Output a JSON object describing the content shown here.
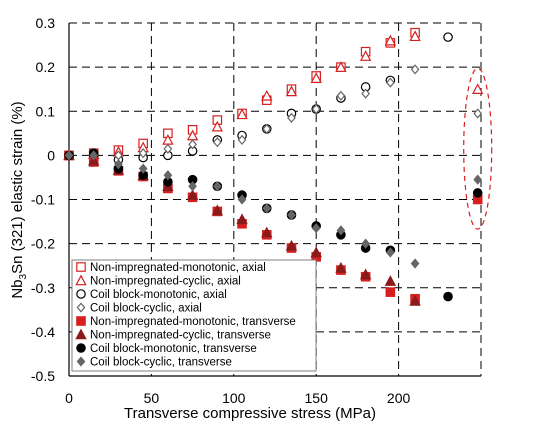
{
  "chart_data": {
    "type": "scatter",
    "xlabel": "Transverse compressive stress (MPa)",
    "ylabel_parts": [
      "Nb",
      "3",
      "Sn (321) elastic strain (%)"
    ],
    "xlim": [
      0,
      250
    ],
    "ylim": [
      -0.5,
      0.3
    ],
    "xticks": [
      "0",
      "50",
      "100",
      "150",
      "200"
    ],
    "xtick_values": [
      0,
      50,
      100,
      150,
      200
    ],
    "yticks": [
      "0.3",
      "0.2",
      "0.1",
      "0",
      "-0.1",
      "-0.2",
      "-0.3",
      "-0.4",
      "-0.5"
    ],
    "ytick_values": [
      0.3,
      0.2,
      0.1,
      0,
      -0.1,
      -0.2,
      -0.3,
      -0.4,
      -0.5
    ],
    "grid": "dashed",
    "legend_position": "lower-left",
    "colors": {
      "red": "#d62020",
      "black": "#000000",
      "gray": "#666666"
    },
    "series": [
      {
        "name": "Non-impregnated-monotonic, axial",
        "marker": "square-open",
        "color": "#d62020",
        "x": [
          0,
          15,
          30,
          45,
          60,
          75,
          90,
          105,
          120,
          135,
          150,
          165,
          180,
          195,
          210
        ],
        "y": [
          0.0,
          0.005,
          0.012,
          0.027,
          0.05,
          0.058,
          0.08,
          0.095,
          0.125,
          0.15,
          0.18,
          0.2,
          0.235,
          0.255,
          0.278
        ]
      },
      {
        "name": "Non-impregnated-cyclic, axial",
        "marker": "triangle-open",
        "color": "#d62020",
        "x": [
          0,
          15,
          30,
          45,
          60,
          75,
          90,
          105,
          120,
          135,
          150,
          165,
          180,
          195,
          210,
          248
        ],
        "y": [
          0.0,
          0.003,
          0.008,
          0.018,
          0.035,
          0.045,
          0.065,
          0.093,
          0.135,
          0.145,
          0.175,
          0.2,
          0.225,
          0.26,
          0.27,
          0.15
        ]
      },
      {
        "name": "Coil block-monotonic, axial",
        "marker": "circle-open",
        "color": "#000000",
        "x": [
          0,
          15,
          30,
          45,
          60,
          75,
          90,
          105,
          120,
          135,
          150,
          165,
          180,
          195,
          230
        ],
        "y": [
          0.0,
          0.0,
          -0.01,
          -0.005,
          0.0,
          0.01,
          0.035,
          0.045,
          0.06,
          0.095,
          0.105,
          0.13,
          0.155,
          0.17,
          0.268
        ]
      },
      {
        "name": "Coil block-cyclic, axial",
        "marker": "diamond-open",
        "color": "#666666",
        "x": [
          0,
          15,
          30,
          45,
          60,
          75,
          90,
          105,
          120,
          135,
          150,
          165,
          180,
          195,
          210,
          248
        ],
        "y": [
          0.0,
          0.0,
          0.0,
          0.005,
          0.015,
          0.025,
          0.03,
          0.035,
          0.06,
          0.085,
          0.105,
          0.135,
          0.14,
          0.165,
          0.195,
          0.095
        ]
      },
      {
        "name": "Non-impregnated-monotonic, transverse",
        "marker": "square-filled",
        "color": "#d62020",
        "x": [
          0,
          15,
          30,
          45,
          60,
          75,
          90,
          105,
          120,
          135,
          150,
          165,
          180,
          195,
          210,
          248
        ],
        "y": [
          0.0,
          -0.015,
          -0.035,
          -0.048,
          -0.075,
          -0.095,
          -0.127,
          -0.155,
          -0.18,
          -0.21,
          -0.23,
          -0.26,
          -0.275,
          -0.31,
          -0.325,
          -0.1
        ]
      },
      {
        "name": "Non-impregnated-cyclic, transverse",
        "marker": "triangle-filled",
        "color": "#8b1a1a",
        "x": [
          0,
          15,
          30,
          45,
          60,
          75,
          90,
          105,
          120,
          135,
          150,
          165,
          180,
          195,
          210
        ],
        "y": [
          0.0,
          -0.012,
          -0.033,
          -0.045,
          -0.07,
          -0.09,
          -0.125,
          -0.145,
          -0.175,
          -0.205,
          -0.22,
          -0.255,
          -0.27,
          -0.285,
          -0.33
        ]
      },
      {
        "name": "Coil block-monotonic, transverse",
        "marker": "circle-filled",
        "color": "#000000",
        "x": [
          0,
          15,
          30,
          45,
          60,
          75,
          90,
          105,
          120,
          135,
          150,
          165,
          180,
          195,
          230,
          248
        ],
        "y": [
          0.0,
          0.005,
          -0.03,
          -0.045,
          -0.06,
          -0.055,
          -0.07,
          -0.09,
          -0.12,
          -0.135,
          -0.16,
          -0.18,
          -0.21,
          -0.215,
          -0.32,
          -0.085
        ]
      },
      {
        "name": "Coil block-cyclic, transverse",
        "marker": "diamond-filled",
        "color": "#666666",
        "x": [
          0,
          15,
          30,
          45,
          60,
          75,
          90,
          105,
          120,
          135,
          150,
          165,
          180,
          195,
          210,
          248
        ],
        "y": [
          0.0,
          0.0,
          -0.02,
          -0.03,
          -0.045,
          -0.07,
          -0.07,
          -0.1,
          -0.12,
          -0.135,
          -0.165,
          -0.17,
          -0.2,
          -0.22,
          -0.245,
          -0.055
        ]
      }
    ],
    "annotation": {
      "shape": "dashed-ellipse",
      "color": "#d62020",
      "x": 248,
      "y_range": [
        -0.14,
        0.17
      ]
    }
  }
}
